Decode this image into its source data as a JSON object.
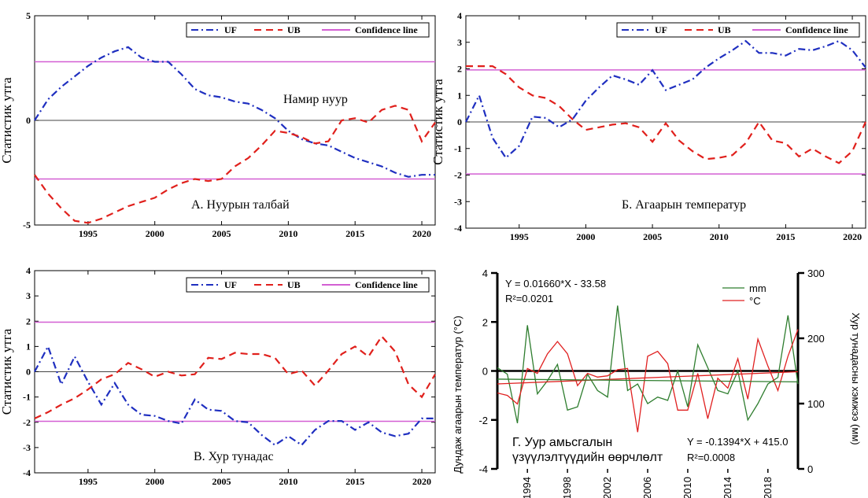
{
  "chart_data": [
    {
      "type": "line",
      "ylabel": "Статистик утга",
      "ylim": [
        -5,
        5
      ],
      "yticks": [
        -5,
        0,
        5
      ],
      "xlim": [
        1991,
        2021
      ],
      "xticks": [
        1995,
        2000,
        2005,
        2010,
        2015,
        2020
      ],
      "confidence": 2.8,
      "legend_position": "top-right",
      "annotations": [
        "Намир нуур",
        "А. Нуурын талбай"
      ],
      "series": [
        {
          "name": "UF",
          "color": "#1f2fc0",
          "style": "dashdot",
          "x": [
            1991,
            1992,
            1993,
            1994,
            1995,
            1996,
            1997,
            1998,
            1999,
            2000,
            2001,
            2002,
            2003,
            2004,
            2005,
            2006,
            2007,
            2008,
            2009,
            2010,
            2011,
            2012,
            2013,
            2014,
            2015,
            2016,
            2017,
            2018,
            2019,
            2020,
            2021
          ],
          "y": [
            0,
            1.0,
            1.6,
            2.1,
            2.6,
            3.0,
            3.3,
            3.5,
            3.0,
            2.8,
            2.8,
            2.2,
            1.5,
            1.2,
            1.1,
            0.9,
            0.8,
            0.5,
            0.1,
            -0.5,
            -0.9,
            -1.1,
            -1.2,
            -1.5,
            -1.8,
            -2.0,
            -2.2,
            -2.5,
            -2.7,
            -2.6,
            -2.6
          ]
        },
        {
          "name": "UB",
          "color": "#e0201c",
          "style": "dashed",
          "x": [
            1991,
            1992,
            1993,
            1994,
            1995,
            1996,
            1997,
            1998,
            1999,
            2000,
            2001,
            2002,
            2003,
            2004,
            2005,
            2006,
            2007,
            2008,
            2009,
            2010,
            2011,
            2012,
            2013,
            2014,
            2015,
            2016,
            2017,
            2018,
            2019,
            2020,
            2021
          ],
          "y": [
            -2.6,
            -3.5,
            -4.2,
            -4.8,
            -4.9,
            -4.7,
            -4.4,
            -4.1,
            -3.9,
            -3.7,
            -3.3,
            -3.0,
            -2.8,
            -2.9,
            -2.8,
            -2.2,
            -1.8,
            -1.2,
            -0.5,
            -0.6,
            -0.8,
            -1.1,
            -1.0,
            0,
            0.1,
            -0.1,
            0.5,
            0.7,
            0.5,
            -1.0,
            -0.1
          ]
        },
        {
          "name": "Confidence line",
          "color": "#d35fd3",
          "style": "solid"
        }
      ]
    },
    {
      "type": "line",
      "ylabel": "Статистик утга",
      "ylim": [
        -4,
        4
      ],
      "yticks": [
        -4,
        -3,
        -2,
        -1,
        0,
        1,
        2,
        3,
        4
      ],
      "xlim": [
        1991,
        2021
      ],
      "xticks": [
        1995,
        2000,
        2005,
        2010,
        2015,
        2020
      ],
      "confidence": 1.96,
      "legend_position": "top-right",
      "annotations": [
        "Б. Агаарын температур"
      ],
      "series": [
        {
          "name": "UF",
          "color": "#1f2fc0",
          "style": "dashdot",
          "x": [
            1991,
            1992,
            1993,
            1994,
            1995,
            1996,
            1997,
            1998,
            1999,
            2000,
            2001,
            2002,
            2003,
            2004,
            2005,
            2006,
            2007,
            2008,
            2009,
            2010,
            2011,
            2012,
            2013,
            2014,
            2015,
            2016,
            2017,
            2018,
            2019,
            2020,
            2021
          ],
          "y": [
            0,
            1.0,
            -0.6,
            -1.35,
            -0.9,
            0.2,
            0.15,
            -0.2,
            0.1,
            0.8,
            1.3,
            1.75,
            1.6,
            1.4,
            1.95,
            1.2,
            1.4,
            1.6,
            2.05,
            2.4,
            2.7,
            3.05,
            2.6,
            2.6,
            2.5,
            2.75,
            2.7,
            2.85,
            3.05,
            2.7,
            2.05
          ]
        },
        {
          "name": "UB",
          "color": "#e0201c",
          "style": "dashed",
          "x": [
            1991,
            1992,
            1993,
            1994,
            1995,
            1996,
            1997,
            1998,
            1999,
            2000,
            2001,
            2002,
            2003,
            2004,
            2005,
            2006,
            2007,
            2008,
            2009,
            2010,
            2011,
            2012,
            2013,
            2014,
            2015,
            2016,
            2017,
            2018,
            2019,
            2020,
            2021
          ],
          "y": [
            2.1,
            2.1,
            2.1,
            1.8,
            1.3,
            1.0,
            0.9,
            0.6,
            0.1,
            -0.3,
            -0.2,
            -0.1,
            -0.05,
            -0.2,
            -0.75,
            -0.05,
            -0.7,
            -1.1,
            -1.4,
            -1.35,
            -1.25,
            -0.8,
            0,
            -0.7,
            -0.8,
            -1.3,
            -1.0,
            -1.3,
            -1.55,
            -1.1,
            0
          ]
        },
        {
          "name": "Confidence line",
          "color": "#d35fd3",
          "style": "solid"
        }
      ]
    },
    {
      "type": "line",
      "ylabel": "Статистик утга",
      "ylim": [
        -4,
        4
      ],
      "yticks": [
        -4,
        -3,
        -2,
        -1,
        0,
        1,
        2,
        3,
        4
      ],
      "xlim": [
        1991,
        2021
      ],
      "xticks": [
        1995,
        2000,
        2005,
        2010,
        2015,
        2020
      ],
      "confidence": 1.96,
      "legend_position": "top-right",
      "annotations": [
        "В. Хур тунадас"
      ],
      "series": [
        {
          "name": "UF",
          "color": "#1f2fc0",
          "style": "dashdot",
          "x": [
            1991,
            1992,
            1993,
            1994,
            1995,
            1996,
            1997,
            1998,
            1999,
            2000,
            2001,
            2002,
            2003,
            2004,
            2005,
            2006,
            2007,
            2008,
            2009,
            2010,
            2011,
            2012,
            2013,
            2014,
            2015,
            2016,
            2017,
            2018,
            2019,
            2020,
            2021
          ],
          "y": [
            0,
            1.0,
            -0.5,
            0.6,
            -0.4,
            -1.3,
            -0.45,
            -1.3,
            -1.7,
            -1.75,
            -1.95,
            -2.05,
            -1.1,
            -1.5,
            -1.55,
            -1.95,
            -2.0,
            -2.5,
            -2.9,
            -2.55,
            -2.9,
            -2.3,
            -1.95,
            -1.95,
            -2.3,
            -2.0,
            -2.4,
            -2.55,
            -2.45,
            -1.85,
            -1.85
          ]
        },
        {
          "name": "UB",
          "color": "#e0201c",
          "style": "dashed",
          "x": [
            1991,
            1992,
            1993,
            1994,
            1995,
            1996,
            1997,
            1998,
            1999,
            2000,
            2001,
            2002,
            2003,
            2004,
            2005,
            2006,
            2007,
            2008,
            2009,
            2010,
            2011,
            2012,
            2013,
            2014,
            2015,
            2016,
            2017,
            2018,
            2019,
            2020,
            2021
          ],
          "y": [
            -1.85,
            -1.6,
            -1.3,
            -1.05,
            -0.7,
            -0.3,
            -0.1,
            0.35,
            0.1,
            -0.2,
            0,
            -0.15,
            -0.1,
            0.55,
            0.5,
            0.75,
            0.7,
            0.7,
            0.55,
            -0.1,
            0.05,
            -0.55,
            0.05,
            0.7,
            1.0,
            0.6,
            1.4,
            0.8,
            -0.5,
            -1.0,
            -0.1
          ]
        },
        {
          "name": "Confidence line",
          "color": "#d35fd3",
          "style": "solid"
        }
      ]
    },
    {
      "type": "line",
      "ylabel_left": "Дундаж агаарын температур (°С)",
      "ylabel_right": "Хур тунадасны хэмжээ (мм)",
      "ylim_left": [
        -4,
        4
      ],
      "yticks_left": [
        -4,
        -2,
        0,
        2,
        4
      ],
      "ylim_right": [
        0,
        300
      ],
      "yticks_right": [
        0,
        100,
        200,
        300
      ],
      "xlim": [
        1991,
        2021
      ],
      "xticks": [
        1994,
        1998,
        2002,
        2006,
        2010,
        2014,
        2018
      ],
      "legend_position": "top-right",
      "equations": {
        "left_line1": "Y = 0.01660*X - 33.58",
        "left_line2": "R²=0.0201",
        "right_line1": "Y = -0.1394*X + 415.0",
        "right_line2": "R²=0.0008"
      },
      "caption_line1": "Г. Уур амьсгалын",
      "caption_line2": "үзүүлэлтүүдийн өөрчлөлт",
      "series": [
        {
          "name": "mm",
          "color": "#2e7d2e",
          "axis": "right",
          "x": [
            1991,
            1992,
            1993,
            1994,
            1995,
            1996,
            1997,
            1998,
            1999,
            2000,
            2001,
            2002,
            2003,
            2004,
            2005,
            2006,
            2007,
            2008,
            2009,
            2010,
            2011,
            2012,
            2013,
            2014,
            2015,
            2016,
            2017,
            2018,
            2019,
            2020,
            2021
          ],
          "y": [
            155,
            145,
            70,
            220,
            115,
            135,
            160,
            90,
            95,
            145,
            120,
            110,
            250,
            120,
            130,
            100,
            110,
            105,
            150,
            95,
            190,
            155,
            120,
            115,
            150,
            75,
            100,
            130,
            140,
            235,
            130
          ]
        },
        {
          "name": "°С",
          "color": "#e02020",
          "axis": "left",
          "x": [
            1991,
            1992,
            1993,
            1994,
            1995,
            1996,
            1997,
            1998,
            1999,
            2000,
            2001,
            2002,
            2003,
            2004,
            2005,
            2006,
            2007,
            2008,
            2009,
            2010,
            2011,
            2012,
            2013,
            2014,
            2015,
            2016,
            2017,
            2018,
            2019,
            2020,
            2021
          ],
          "y": [
            -0.9,
            -1.0,
            -1.35,
            0.1,
            -0.1,
            0.7,
            1.2,
            0.7,
            -0.6,
            -0.1,
            -0.25,
            -0.2,
            0.05,
            0.1,
            -2.5,
            0.6,
            0.8,
            0.3,
            -1.6,
            -1.6,
            -0.1,
            -1.95,
            -0.3,
            -0.7,
            0.5,
            -1.15,
            1.3,
            0.2,
            -0.8,
            0.6,
            1.7
          ]
        }
      ],
      "trendlines": [
        {
          "axis": "left",
          "color": "#e02020",
          "slope": 0.0166,
          "intercept": -33.58
        },
        {
          "axis": "right",
          "color": "#2e7d2e",
          "slope": -0.1394,
          "intercept": 415.0
        }
      ]
    }
  ]
}
